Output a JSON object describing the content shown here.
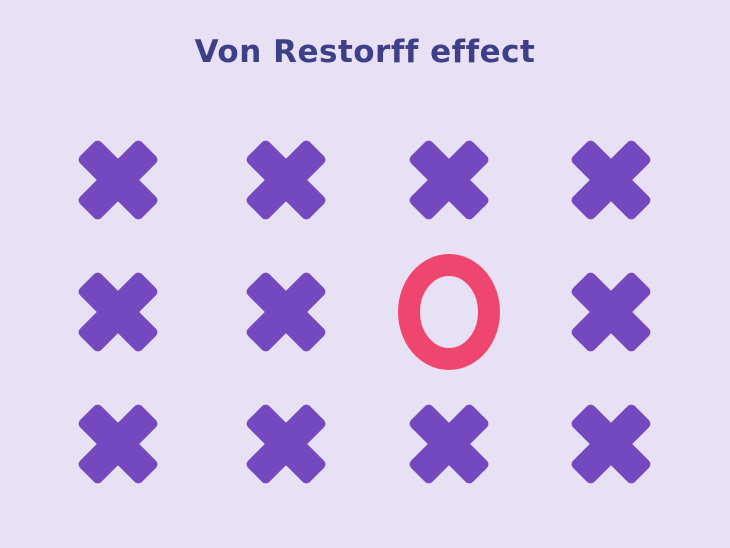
{
  "title": "Von Restorff effect",
  "colors": {
    "background": "#e8e0f4",
    "title": "#3d3f88",
    "cross": "#7449bf",
    "odd_one": "#ef4670"
  },
  "grid": {
    "rows": 3,
    "cols": 4,
    "cells": [
      [
        "x-icon",
        "x-icon",
        "x-icon",
        "x-icon"
      ],
      [
        "x-icon",
        "x-icon",
        "o-icon",
        "x-icon"
      ],
      [
        "x-icon",
        "x-icon",
        "x-icon",
        "x-icon"
      ]
    ]
  }
}
